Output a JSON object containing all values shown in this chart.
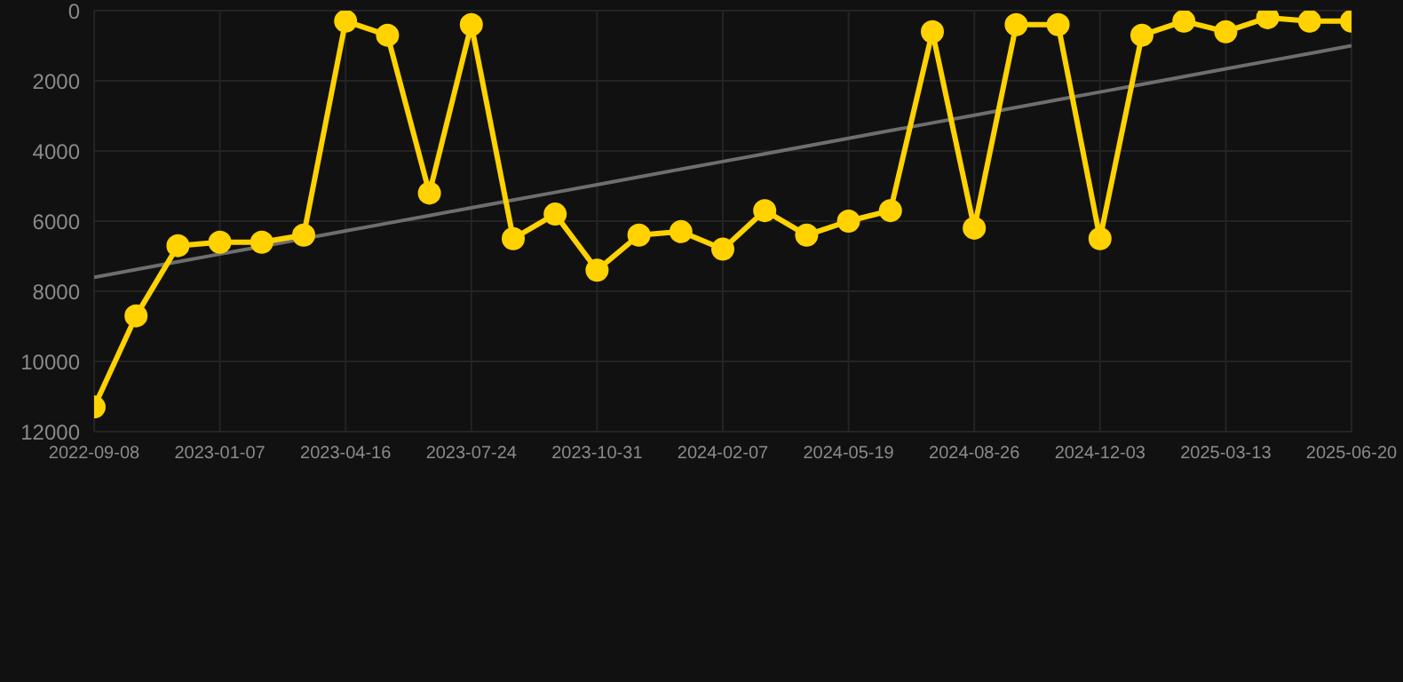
{
  "chart_data": {
    "type": "line",
    "categories": [
      "2022-09-08",
      null,
      null,
      "2023-01-07",
      null,
      null,
      "2023-04-16",
      null,
      null,
      "2023-07-24",
      null,
      null,
      "2023-10-31",
      null,
      null,
      "2024-02-07",
      null,
      null,
      "2024-05-19",
      null,
      null,
      "2024-08-26",
      null,
      null,
      "2024-12-03",
      null,
      null,
      "2025-03-13",
      null,
      null,
      "2025-06-20"
    ],
    "series": [
      {
        "color": "#ffd200",
        "marker": "circle",
        "values": [
          11300,
          8700,
          6700,
          6600,
          6600,
          6400,
          300,
          700,
          5200,
          400,
          6500,
          5800,
          7400,
          6400,
          6300,
          6800,
          5700,
          6400,
          6000,
          5700,
          600,
          6200,
          400,
          400,
          6500,
          700,
          300,
          600,
          200,
          300,
          300
        ]
      },
      {
        "type": "line",
        "color": "#6e6e6e",
        "marker": "none",
        "values": [
          7600,
          7380,
          7160,
          6940,
          6720,
          6500,
          6280,
          6060,
          5840,
          5620,
          5400,
          5180,
          4960,
          4740,
          4520,
          4300,
          4080,
          3860,
          3640,
          3420,
          3200,
          2980,
          2760,
          2540,
          2320,
          2100,
          1880,
          1660,
          1440,
          1220,
          1000
        ]
      }
    ],
    "ylim": [
      12000,
      0
    ],
    "yticks": [
      0,
      2000,
      4000,
      6000,
      8000,
      10000,
      12000
    ],
    "grid": true,
    "line_style": "solid"
  }
}
